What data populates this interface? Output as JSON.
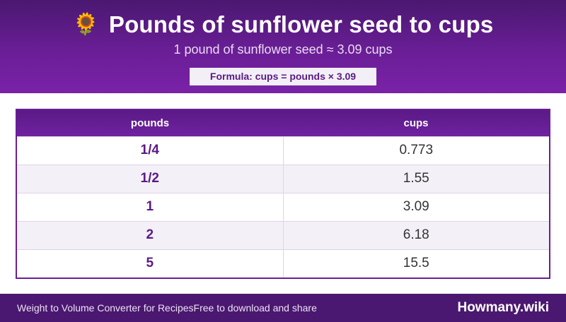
{
  "header": {
    "icon": "sunflower-icon",
    "icon_glyph": "🌻",
    "title": "Pounds of sunflower seed to cups",
    "subtitle": "1 pound of sunflower seed ≈ 3.09 cups",
    "formula": "Formula: cups = pounds × 3.09"
  },
  "table": {
    "headers": [
      "pounds",
      "cups"
    ],
    "rows": [
      {
        "pounds": "1/4",
        "cups": "0.773"
      },
      {
        "pounds": "1/2",
        "cups": "1.55"
      },
      {
        "pounds": "1",
        "cups": "3.09"
      },
      {
        "pounds": "2",
        "cups": "6.18"
      },
      {
        "pounds": "5",
        "cups": "15.5"
      }
    ]
  },
  "footer": {
    "app_name": "Weight to Volume Converter for Recipes",
    "tagline": "Free to download and share",
    "brand": "Howmany.wiki"
  },
  "colors": {
    "header_bg": "#6a1e96",
    "footer_bg": "#4a1870",
    "accent": "#5a1a86"
  }
}
